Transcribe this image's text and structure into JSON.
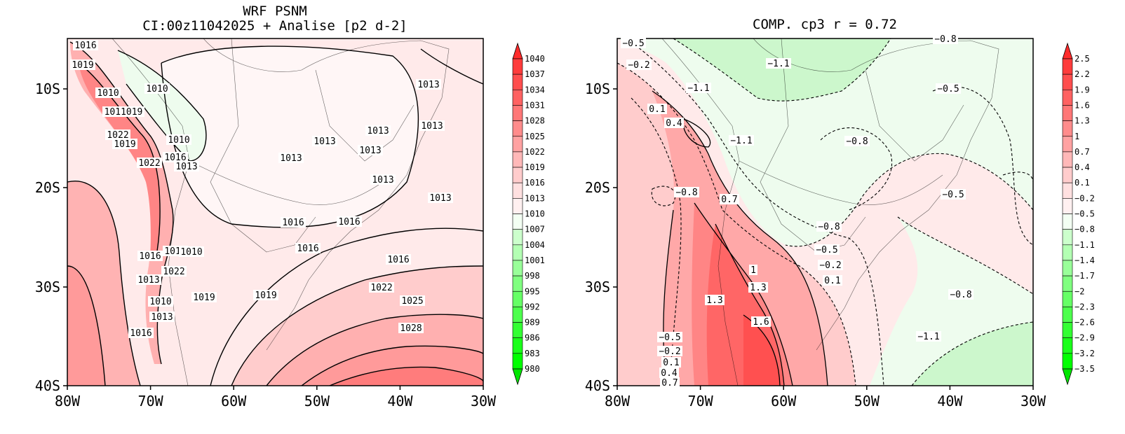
{
  "panels": [
    {
      "id": "left",
      "title_line1": "WRF PSNM",
      "title_line2": "CI:00z11042025 + Analise  [p2 d-2]",
      "x_ticks": [
        "80W",
        "70W",
        "60W",
        "50W",
        "40W",
        "30W"
      ],
      "y_ticks": [
        "10S",
        "20S",
        "30S",
        "40S"
      ],
      "colorbar": {
        "labels": [
          "1040",
          "1037",
          "1034",
          "1031",
          "1028",
          "1025",
          "1022",
          "1019",
          "1016",
          "1013",
          "1010",
          "1007",
          "1004",
          "1001",
          "998",
          "995",
          "992",
          "989",
          "986",
          "983",
          "980"
        ],
        "colors": [
          "#ff2b2b",
          "#ff3c3c",
          "#ff4e4e",
          "#ff6262",
          "#ff7777",
          "#ff8c8c",
          "#ffa2a2",
          "#ffb8b8",
          "#ffcccc",
          "#ffe0e0",
          "#fff0f0",
          "#f3fff3",
          "#ccffcc",
          "#b3ffb3",
          "#99ff99",
          "#80ff80",
          "#66ff66",
          "#4dff4d",
          "#33ff33",
          "#1aff1a",
          "#00ff00",
          "#00e600"
        ]
      },
      "contour_labels": [
        "1016",
        "1019",
        "1010",
        "1010",
        "1011019",
        "1022",
        "1019",
        "1010",
        "1022",
        "1016",
        "1013",
        "1013",
        "1013",
        "1013",
        "1013",
        "1013",
        "1013",
        "1013",
        "1013",
        "1016",
        "1016",
        "1016",
        "1016",
        "1016",
        "1013",
        "1010",
        "1022",
        "1013",
        "1010",
        "1019",
        "1013",
        "1016",
        "1019",
        "1022",
        "1025",
        "1028"
      ]
    },
    {
      "id": "right",
      "title": "COMP. cp3   r =   0.72",
      "x_ticks": [
        "80W",
        "70W",
        "60W",
        "50W",
        "40W",
        "30W"
      ],
      "y_ticks": [
        "10S",
        "20S",
        "30S",
        "40S"
      ],
      "colorbar": {
        "labels": [
          "2.5",
          "2.2",
          "1.9",
          "1.6",
          "1.3",
          "1",
          "0.7",
          "0.4",
          "0.1",
          "−0.2",
          "−0.5",
          "−0.8",
          "−1.1",
          "−1.4",
          "−1.7",
          "−2",
          "−2.3",
          "−2.6",
          "−2.9",
          "−3.2",
          "−3.5"
        ],
        "colors": [
          "#ff2b2b",
          "#ff3c3c",
          "#ff4e4e",
          "#ff6262",
          "#ff7777",
          "#ff8c8c",
          "#ffa2a2",
          "#ffb8b8",
          "#ffcccc",
          "#ffe0e0",
          "#fff0f0",
          "#f3fff3",
          "#ccffcc",
          "#b3ffb3",
          "#99ff99",
          "#80ff80",
          "#66ff66",
          "#4dff4d",
          "#33ff33",
          "#1aff1a",
          "#00ff00",
          "#00e600"
        ]
      },
      "contour_labels": [
        "−0.5",
        "−0.2",
        "−1.1",
        "−1.1",
        "−0.8",
        "0.1",
        "0.4",
        "−1.1",
        "−0.8",
        "−0.5",
        "−0.8",
        "0.7",
        "−0.8",
        "−0.5",
        "−0.5",
        "−0.2",
        "1",
        "1.3",
        "1.3",
        "0.1",
        "1.6",
        "−0.8",
        "−1.1",
        "−0.5",
        "−0.2",
        "0.1",
        "0.4",
        "0.7"
      ]
    }
  ]
}
